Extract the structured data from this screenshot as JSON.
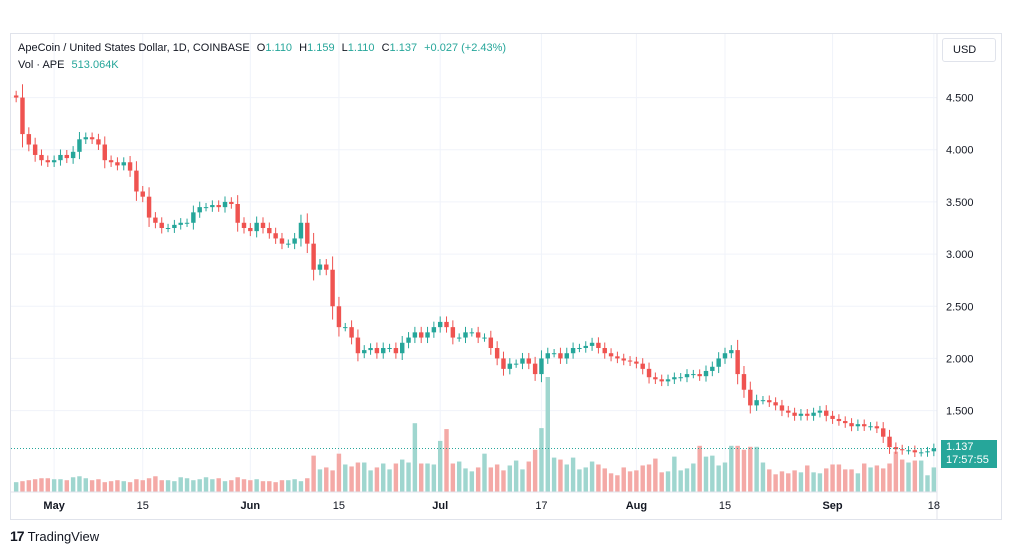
{
  "header": {
    "symbol_title": "ApeCoin / United States Dollar, 1D, COINBASE",
    "o_label": "O",
    "o_value": "1.110",
    "h_label": "H",
    "h_value": "1.159",
    "l_label": "L",
    "l_value": "1.110",
    "c_label": "C",
    "c_value": "1.137",
    "change": "+0.027 (+2.43%)",
    "vol_label": "Vol · APE",
    "vol_value": "513.064K"
  },
  "currency_button": "USD",
  "price_tag": {
    "price": "1.137",
    "countdown": "17:57:55"
  },
  "branding": {
    "logo_mark": "17",
    "name": "TradingView"
  },
  "colors": {
    "up": "#26a69a",
    "down": "#ef5350",
    "vol_up": "#9fd6cf",
    "vol_down": "#f4a9a6",
    "grid": "#f0f3fa"
  },
  "chart_data": {
    "type": "candlestick",
    "title": "ApeCoin / United States Dollar, 1D, COINBASE",
    "y_ticks": [
      "4.500",
      "4.000",
      "3.500",
      "3.000",
      "2.500",
      "2.000",
      "1.500"
    ],
    "ylim": [
      0.72,
      4.86
    ],
    "x_ticks": [
      {
        "label": "May",
        "index": 6
      },
      {
        "label": "15",
        "index": 20
      },
      {
        "label": "Jun",
        "index": 37
      },
      {
        "label": "15",
        "index": 51
      },
      {
        "label": "Jul",
        "index": 67
      },
      {
        "label": "17",
        "index": 83
      },
      {
        "label": "Aug",
        "index": 98
      },
      {
        "label": "15",
        "index": 112
      },
      {
        "label": "Sep",
        "index": 129
      },
      {
        "label": "18",
        "index": 145
      }
    ],
    "grid": true,
    "last_price": 1.137,
    "close": [
      4.5,
      4.15,
      4.05,
      3.95,
      3.9,
      3.88,
      3.9,
      3.95,
      3.92,
      3.98,
      4.1,
      4.12,
      4.1,
      4.05,
      3.9,
      3.88,
      3.85,
      3.88,
      3.8,
      3.6,
      3.55,
      3.35,
      3.3,
      3.25,
      3.25,
      3.28,
      3.3,
      3.3,
      3.4,
      3.45,
      3.45,
      3.47,
      3.45,
      3.5,
      3.48,
      3.3,
      3.25,
      3.22,
      3.3,
      3.25,
      3.2,
      3.15,
      3.1,
      3.1,
      3.15,
      3.3,
      3.1,
      2.85,
      2.9,
      2.85,
      2.5,
      2.3,
      2.3,
      2.2,
      2.05,
      2.08,
      2.1,
      2.05,
      2.1,
      2.1,
      2.05,
      2.15,
      2.2,
      2.25,
      2.2,
      2.25,
      2.3,
      2.35,
      2.3,
      2.2,
      2.2,
      2.25,
      2.25,
      2.2,
      2.2,
      2.1,
      2.0,
      1.9,
      1.95,
      1.95,
      2.0,
      1.95,
      1.85,
      2.0,
      2.05,
      2.05,
      2.0,
      2.05,
      2.1,
      2.1,
      2.12,
      2.15,
      2.1,
      2.05,
      2.02,
      2.0,
      1.98,
      1.97,
      1.95,
      1.9,
      1.82,
      1.8,
      1.78,
      1.8,
      1.82,
      1.82,
      1.85,
      1.85,
      1.83,
      1.88,
      1.92,
      2.0,
      2.05,
      2.08,
      1.85,
      1.7,
      1.55,
      1.6,
      1.6,
      1.58,
      1.55,
      1.5,
      1.48,
      1.45,
      1.47,
      1.45,
      1.48,
      1.5,
      1.45,
      1.42,
      1.4,
      1.38,
      1.35,
      1.37,
      1.35,
      1.35,
      1.33,
      1.25,
      1.15,
      1.13,
      1.12,
      1.12,
      1.1,
      1.1,
      1.11,
      1.137
    ],
    "volume": [
      10,
      11,
      12,
      13,
      14,
      14,
      13,
      13,
      12,
      15,
      16,
      14,
      12,
      13,
      10,
      11,
      12,
      11,
      10,
      13,
      12,
      14,
      16,
      12,
      12,
      11,
      15,
      14,
      12,
      13,
      15,
      13,
      14,
      11,
      12,
      15,
      13,
      12,
      13,
      11,
      11,
      10,
      12,
      12,
      13,
      11,
      14,
      37,
      23,
      25,
      22,
      39,
      28,
      26,
      30,
      30,
      22,
      25,
      29,
      23,
      29,
      33,
      30,
      70,
      29,
      29,
      28,
      52,
      64,
      29,
      31,
      24,
      21,
      25,
      39,
      25,
      28,
      22,
      27,
      32,
      23,
      31,
      43,
      65,
      117,
      35,
      33,
      28,
      35,
      23,
      25,
      31,
      28,
      24,
      19,
      17,
      25,
      21,
      22,
      27,
      28,
      34,
      20,
      21,
      36,
      22,
      24,
      29,
      47,
      36,
      37,
      27,
      30,
      47,
      47,
      43,
      46,
      46,
      30,
      23,
      18,
      21,
      19,
      22,
      20,
      27,
      20,
      19,
      24,
      28,
      28,
      23,
      23,
      19,
      29,
      25,
      27,
      24,
      29,
      41,
      33,
      30,
      32,
      32,
      17,
      25
    ]
  }
}
